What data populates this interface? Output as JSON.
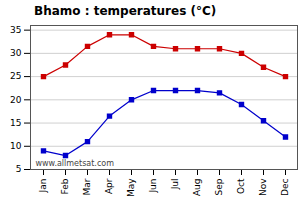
{
  "chart_data": {
    "type": "line",
    "title": "Bhamo : temperatures (°C)",
    "categories": [
      "Jan",
      "Feb",
      "Mar",
      "Apr",
      "May",
      "Jun",
      "Jul",
      "Aug",
      "Sep",
      "Oct",
      "Nov",
      "Dec"
    ],
    "series": [
      {
        "color": "#cc0000",
        "values": [
          25,
          27.5,
          31.5,
          34,
          34,
          31.5,
          31,
          31,
          31,
          30,
          27,
          25
        ],
        "marker": "square",
        "line_style": "solid"
      },
      {
        "color": "#0000cc",
        "values": [
          9,
          8,
          11,
          16.5,
          20,
          22,
          22,
          22,
          21.5,
          19,
          15.5,
          12
        ],
        "marker": "square",
        "line_style": "solid"
      }
    ],
    "ylim": [
      5,
      36
    ],
    "yticks": [
      5,
      10,
      15,
      20,
      25,
      30,
      35
    ],
    "grid": true,
    "annotations": [
      "www.allmetsat.com"
    ]
  }
}
